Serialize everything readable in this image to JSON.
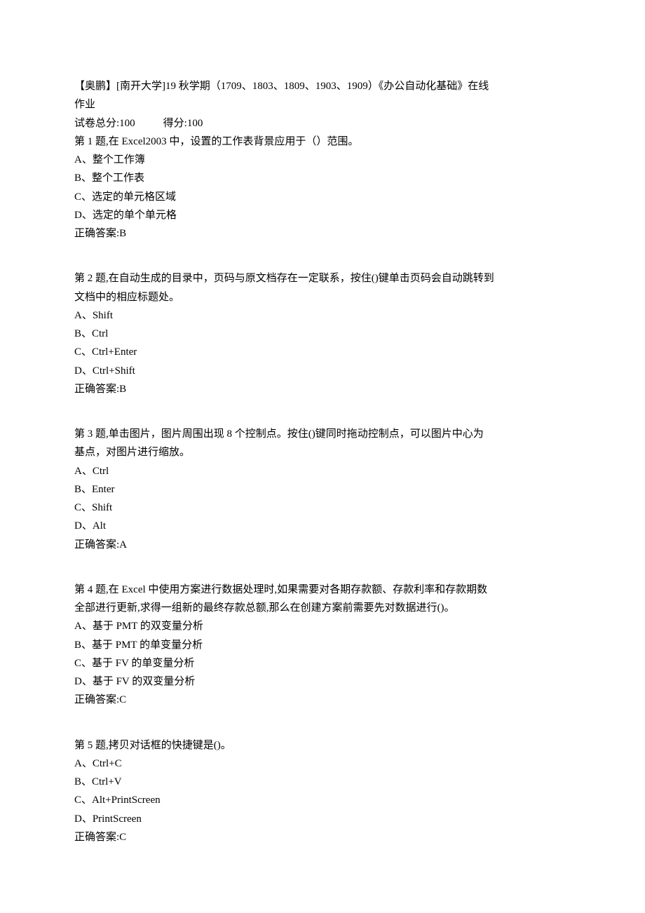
{
  "header": {
    "title_line1": "【奥鹏】[南开大学]19 秋学期（1709、1803、1809、1903、1909）《办公自动化基础》在线",
    "title_line2": "作业",
    "score_total_label": "试卷总分:100",
    "score_got_label": "得分:100"
  },
  "questions": [
    {
      "stem_lines": [
        "第 1 题,在 Excel2003 中，设置的工作表背景应用于（）范围。"
      ],
      "options": [
        "A、整个工作簿",
        "B、整个工作表",
        "C、选定的单元格区域",
        "D、选定的单个单元格"
      ],
      "answer": "正确答案:B"
    },
    {
      "stem_lines": [
        "第 2 题,在自动生成的目录中，页码与原文档存在一定联系，按住()键单击页码会自动跳转到",
        "文档中的相应标题处。"
      ],
      "options": [
        "A、Shift",
        "B、Ctrl",
        "C、Ctrl+Enter",
        "D、Ctrl+Shift"
      ],
      "answer": "正确答案:B"
    },
    {
      "stem_lines": [
        "第 3 题,单击图片，图片周围出现 8 个控制点。按住()键同时拖动控制点，可以图片中心为",
        "基点，对图片进行缩放。"
      ],
      "options": [
        "A、Ctrl",
        "B、Enter",
        "C、Shift",
        "D、Alt"
      ],
      "answer": "正确答案:A"
    },
    {
      "stem_lines": [
        "第 4 题,在 Excel 中使用方案进行数据处理时,如果需要对各期存款额、存款利率和存款期数",
        "全部进行更新,求得一组新的最终存款总额,那么在创建方案前需要先对数据进行()。"
      ],
      "options": [
        "A、基于 PMT 的双变量分析",
        "B、基于 PMT 的单变量分析",
        "C、基于 FV 的单变量分析",
        "D、基于 FV 的双变量分析"
      ],
      "answer": "正确答案:C"
    },
    {
      "stem_lines": [
        "第 5 题,拷贝对话框的快捷键是()。"
      ],
      "options": [
        "A、Ctrl+C",
        "B、Ctrl+V",
        "C、Alt+PrintScreen",
        "D、PrintScreen"
      ],
      "answer": "正确答案:C"
    }
  ]
}
